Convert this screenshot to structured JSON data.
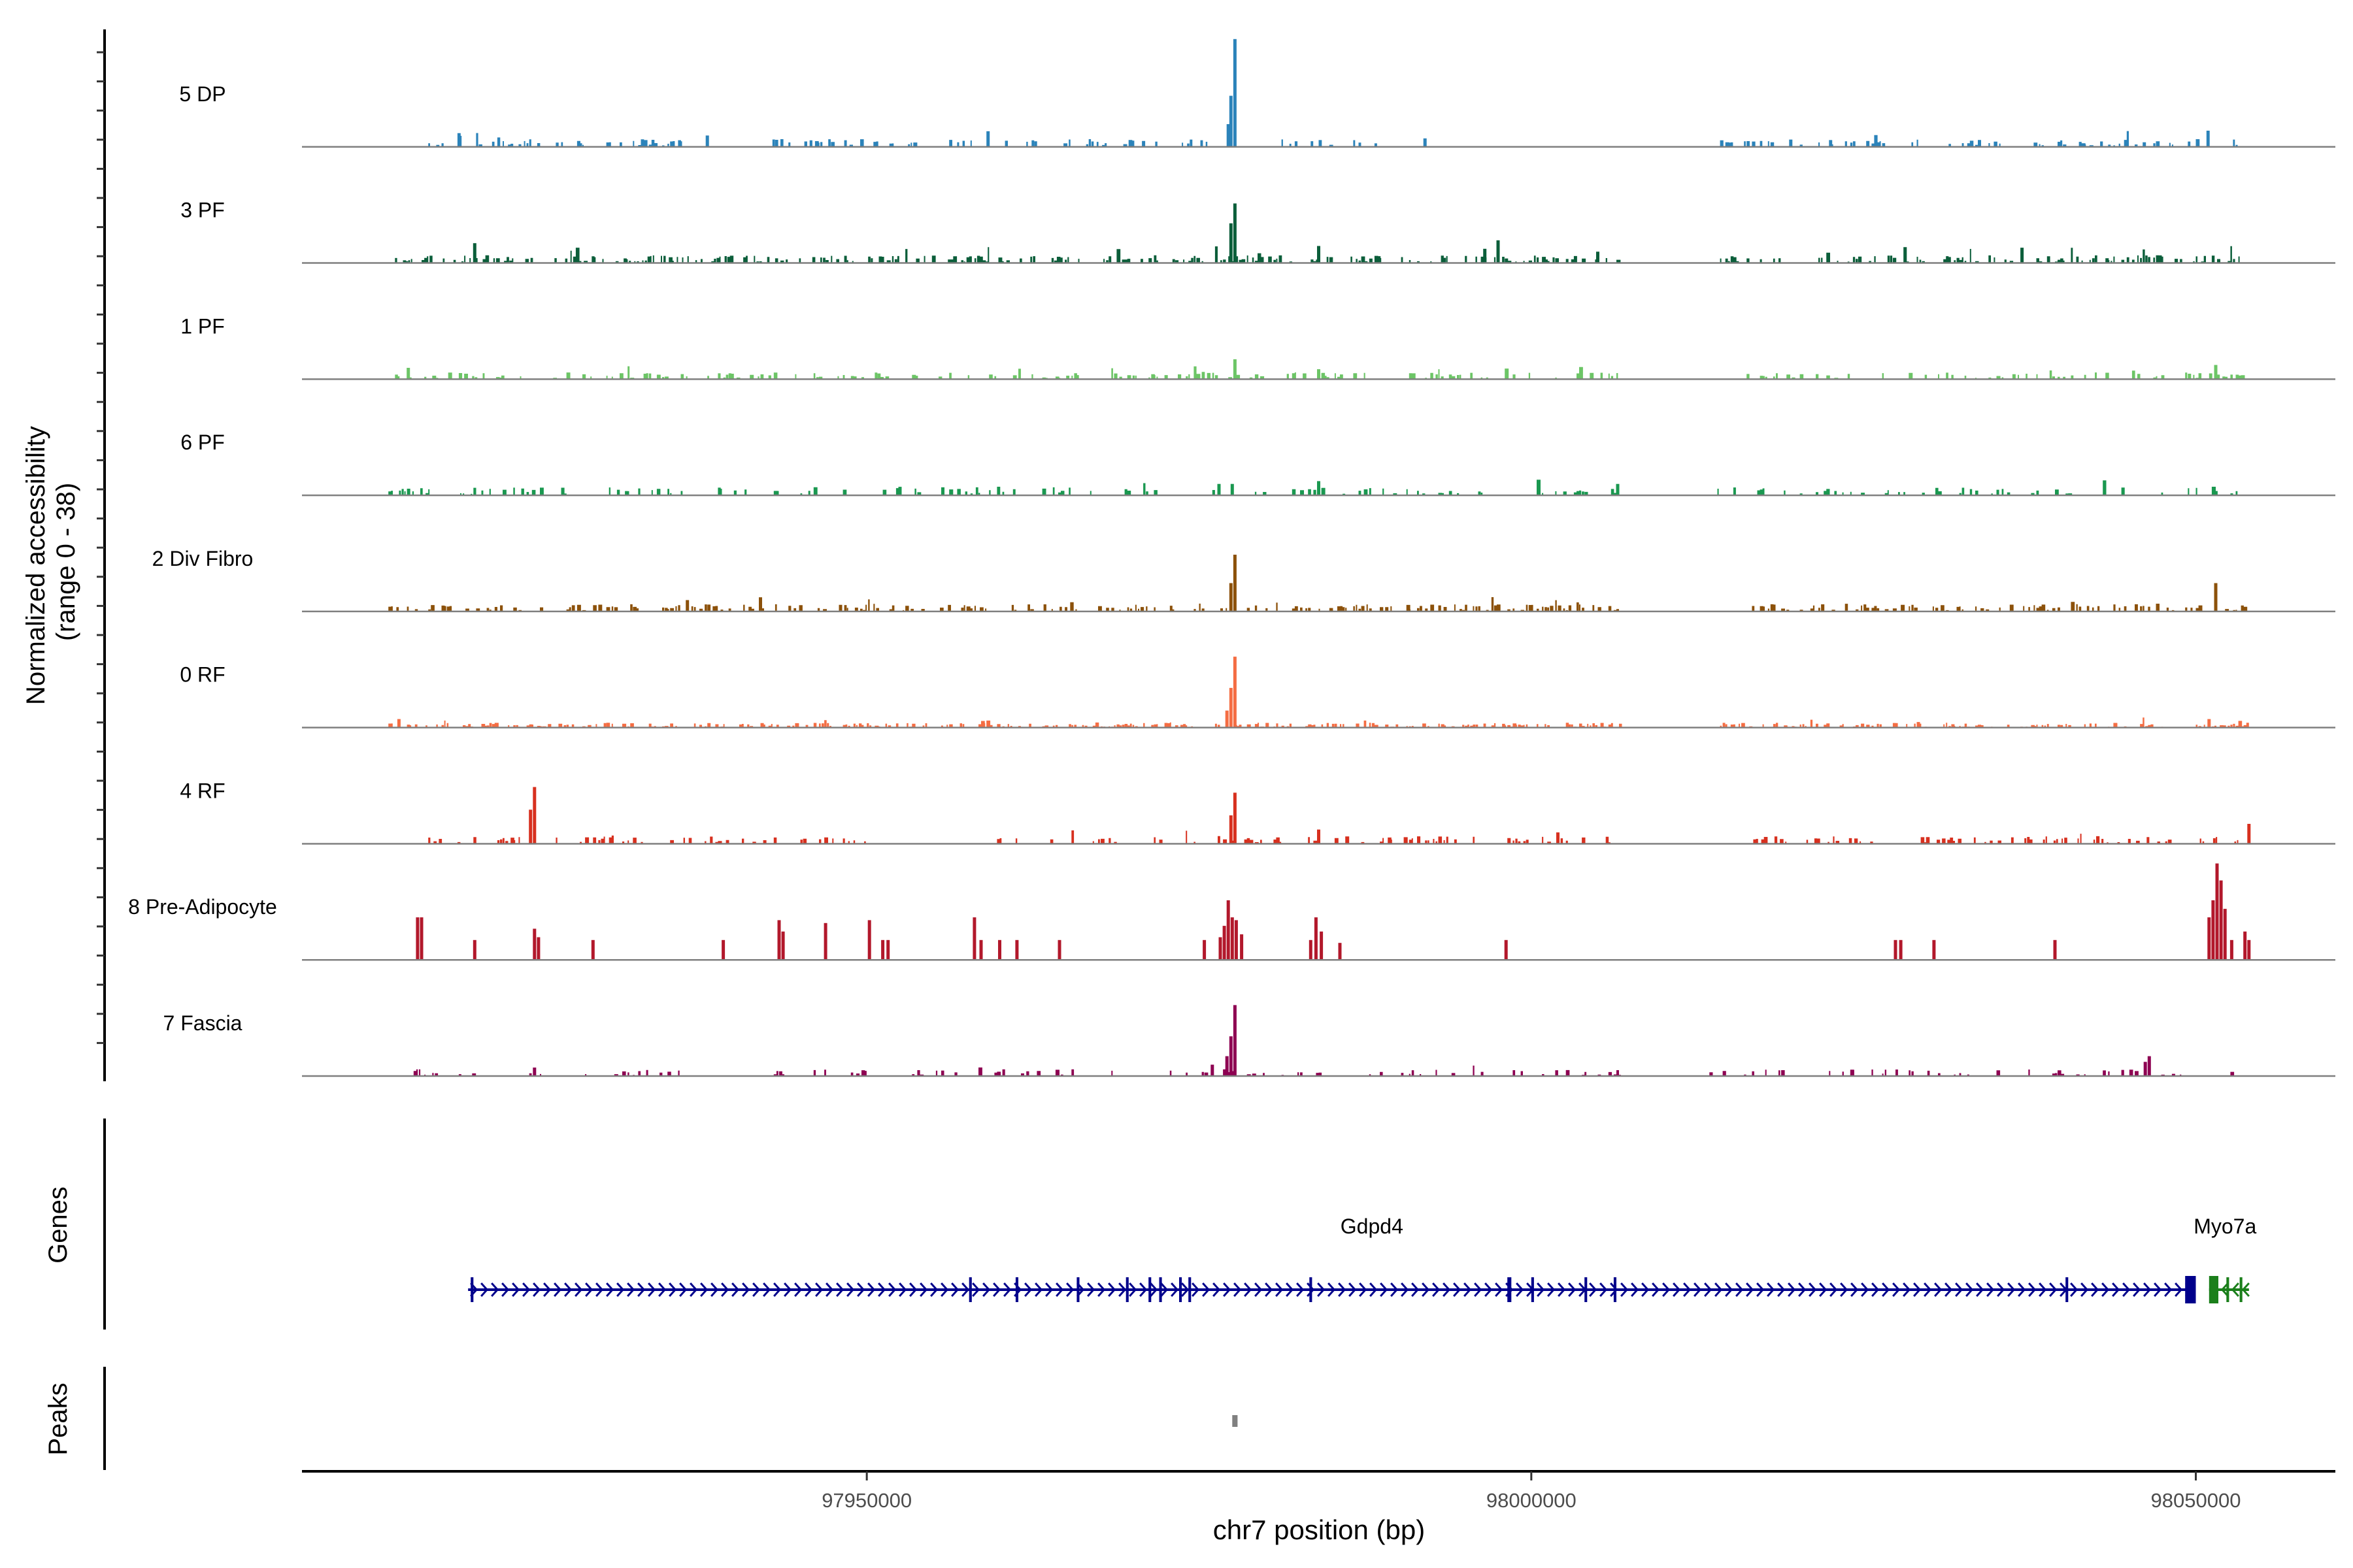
{
  "chart_data": {
    "type": "area",
    "title": "",
    "xlabel": "chr7 position (bp)",
    "ylabel_line1": "Normalized accessibility",
    "ylabel_line2": "(range 0 - 38)",
    "ylim": [
      0,
      38
    ],
    "xlim": [
      97907500,
      98060500
    ],
    "xticks": [
      97950000,
      98000000,
      98050000
    ],
    "xtick_labels": [
      "97950000",
      "98000000",
      "98050000"
    ],
    "genes_label": "Genes",
    "peaks_label": "Peaks",
    "tracks": [
      {
        "name": "5 DP",
        "color": "#2b83ba",
        "seed": 11,
        "density": 0.35,
        "base": 1.6,
        "segments": [
          [
            97917000,
            97936500
          ],
          [
            97941500,
            97954000
          ],
          [
            97956000,
            97965500
          ],
          [
            97966500,
            97976000
          ],
          [
            97981000,
            97988500
          ],
          [
            98014000,
            98030000
          ],
          [
            98031000,
            98053500
          ]
        ],
        "peaks": [
          [
            97977700,
            38
          ],
          [
            97977400,
            18
          ],
          [
            97977200,
            8
          ],
          [
            97938000,
            4
          ],
          [
            97992000,
            3
          ]
        ]
      },
      {
        "name": "3 PF",
        "color": "#0b5e3a",
        "seed": 23,
        "density": 0.45,
        "base": 1.6,
        "segments": [
          [
            97914500,
            97940000
          ],
          [
            97940500,
            97966000
          ],
          [
            97967000,
            97989000
          ],
          [
            97990000,
            98007000
          ],
          [
            98014000,
            98054000
          ]
        ],
        "peaks": [
          [
            97977700,
            21
          ],
          [
            97977400,
            14
          ],
          [
            97920500,
            7
          ],
          [
            97984000,
            6
          ],
          [
            97997500,
            8
          ],
          [
            97996500,
            5
          ],
          [
            98005000,
            4
          ]
        ]
      },
      {
        "name": "1 PF",
        "color": "#6cc566",
        "seed": 37,
        "density": 0.3,
        "base": 1.4,
        "segments": [
          [
            97914500,
            97924500
          ],
          [
            97925000,
            97936500
          ],
          [
            97937000,
            97966000
          ],
          [
            97967000,
            97987500
          ],
          [
            97990000,
            98007000
          ],
          [
            98016000,
            98054000
          ]
        ],
        "peaks": [
          [
            97977700,
            7
          ],
          [
            97915500,
            4
          ],
          [
            97984000,
            3.5
          ],
          [
            98051500,
            5
          ]
        ]
      },
      {
        "name": "6 PF",
        "color": "#1a9850",
        "seed": 49,
        "density": 0.28,
        "base": 1.7,
        "segments": [
          [
            97914000,
            97926000
          ],
          [
            97927000,
            97950000
          ],
          [
            97951000,
            97975000
          ],
          [
            97976000,
            97995000
          ],
          [
            97996000,
            98007000
          ],
          [
            98013000,
            98054000
          ]
        ],
        "peaks": [
          [
            97984000,
            5
          ],
          [
            97977500,
            4
          ],
          [
            97976500,
            4
          ],
          [
            98006500,
            4
          ],
          [
            97952500,
            3
          ]
        ]
      },
      {
        "name": "2 Div Fibro",
        "color": "#8c510a",
        "seed": 61,
        "density": 0.4,
        "base": 1.5,
        "segments": [
          [
            97914000,
            97940000
          ],
          [
            97940500,
            97966000
          ],
          [
            97967000,
            97989500
          ],
          [
            97990000,
            98007000
          ],
          [
            98016000,
            98054000
          ]
        ],
        "peaks": [
          [
            97977700,
            20
          ],
          [
            97977400,
            10
          ],
          [
            98051500,
            10
          ],
          [
            97942000,
            5
          ],
          [
            97936500,
            4
          ]
        ]
      },
      {
        "name": "0 RF",
        "color": "#f46d43",
        "seed": 73,
        "density": 0.5,
        "base": 1.0,
        "segments": [
          [
            97914000,
            97920500
          ],
          [
            97921000,
            97936000
          ],
          [
            97937000,
            97975000
          ],
          [
            97976000,
            98007000
          ],
          [
            98014000,
            98030000
          ],
          [
            98031000,
            98048000
          ],
          [
            98050000,
            98054000
          ]
        ],
        "peaks": [
          [
            97977700,
            25
          ],
          [
            97977400,
            14
          ],
          [
            97977100,
            6
          ],
          [
            97914800,
            3
          ],
          [
            98051000,
            3
          ]
        ]
      },
      {
        "name": "4 RF",
        "color": "#d7301f",
        "seed": 89,
        "density": 0.3,
        "base": 1.6,
        "segments": [
          [
            97917000,
            97927000
          ],
          [
            97928000,
            97942500
          ],
          [
            97943000,
            97950000
          ],
          [
            97959000,
            97966000
          ],
          [
            97967000,
            97975000
          ],
          [
            97976000,
            98007000
          ],
          [
            98016500,
            98054000
          ]
        ],
        "peaks": [
          [
            97925000,
            20
          ],
          [
            97924700,
            12
          ],
          [
            97977700,
            18
          ],
          [
            97977400,
            10
          ],
          [
            97984000,
            5
          ],
          [
            98054000,
            7
          ],
          [
            98002000,
            4
          ]
        ]
      },
      {
        "name": "8 Pre-Adipocyte",
        "color": "#b2182b",
        "seed": 97,
        "density": 0,
        "base": 0,
        "segments": [],
        "peaks": [
          [
            97916200,
            15
          ],
          [
            97916500,
            15
          ],
          [
            97920500,
            7
          ],
          [
            97925000,
            11
          ],
          [
            97925300,
            8
          ],
          [
            97929400,
            7
          ],
          [
            97939200,
            7
          ],
          [
            97943400,
            14
          ],
          [
            97943700,
            10
          ],
          [
            97946900,
            13
          ],
          [
            97950200,
            14
          ],
          [
            97951200,
            7
          ],
          [
            97951600,
            7
          ],
          [
            97958100,
            15
          ],
          [
            97958600,
            7
          ],
          [
            97960000,
            7
          ],
          [
            97961300,
            7
          ],
          [
            97964500,
            7
          ],
          [
            97975400,
            7
          ],
          [
            97976600,
            8
          ],
          [
            97976900,
            12
          ],
          [
            97977200,
            21
          ],
          [
            97977500,
            15
          ],
          [
            97977800,
            14
          ],
          [
            97978200,
            9
          ],
          [
            97983400,
            7
          ],
          [
            97983800,
            15
          ],
          [
            97984200,
            10
          ],
          [
            97985600,
            6
          ],
          [
            97998100,
            7
          ],
          [
            98027400,
            7
          ],
          [
            98027800,
            7
          ],
          [
            98030300,
            7
          ],
          [
            98039400,
            7
          ],
          [
            98051000,
            15
          ],
          [
            98051300,
            21
          ],
          [
            98051600,
            34
          ],
          [
            98051900,
            28
          ],
          [
            98052200,
            18
          ],
          [
            98052700,
            7
          ],
          [
            98053700,
            10
          ],
          [
            98054000,
            7
          ]
        ]
      },
      {
        "name": "7 Fascia",
        "color": "#8e0152",
        "seed": 113,
        "density": 0.22,
        "base": 1.4,
        "segments": [
          [
            97915500,
            97921000
          ],
          [
            97924000,
            97925500
          ],
          [
            97928000,
            97936000
          ],
          [
            97937000,
            97940000
          ],
          [
            97942000,
            97950000
          ],
          [
            97951000,
            97966000
          ],
          [
            97967000,
            97989000
          ],
          [
            97990000,
            98007000
          ],
          [
            98013000,
            98054000
          ]
        ],
        "peaks": [
          [
            97977700,
            25
          ],
          [
            97977400,
            14
          ],
          [
            97977100,
            7
          ],
          [
            98046500,
            7
          ],
          [
            98046200,
            5
          ],
          [
            97925000,
            3
          ],
          [
            97976000,
            4
          ]
        ]
      }
    ],
    "genes": [
      {
        "name": "Gdpd4",
        "strand": "+",
        "color": "#00008b",
        "start": 97920000,
        "end": 98050000,
        "label_position": 97988000,
        "exons": [
          [
            97920200,
            97920400
          ],
          [
            97957700,
            97957900
          ],
          [
            97961200,
            97961400
          ],
          [
            97965800,
            97966000
          ],
          [
            97969500,
            97969700
          ],
          [
            97971200,
            97971400
          ],
          [
            97972000,
            97972200
          ],
          [
            97973500,
            97973700
          ],
          [
            97974200,
            97974400
          ],
          [
            97983300,
            97983500
          ],
          [
            97998200,
            97998500
          ],
          [
            98000000,
            98000200
          ],
          [
            98004000,
            98004200
          ],
          [
            98006200,
            98006400
          ],
          [
            98040200,
            98040400
          ],
          [
            98049200,
            98050000
          ]
        ]
      },
      {
        "name": "Myo7a",
        "strand": "-",
        "color": "#1b7f1b",
        "start": 98051000,
        "end": 98054000,
        "label_position": 98052200,
        "exons": [
          [
            98051000,
            98051700
          ],
          [
            98052300,
            98052500
          ],
          [
            98053300,
            98053500
          ]
        ]
      }
    ],
    "peaks": [
      {
        "start": 97977500,
        "end": 97977900
      }
    ]
  }
}
